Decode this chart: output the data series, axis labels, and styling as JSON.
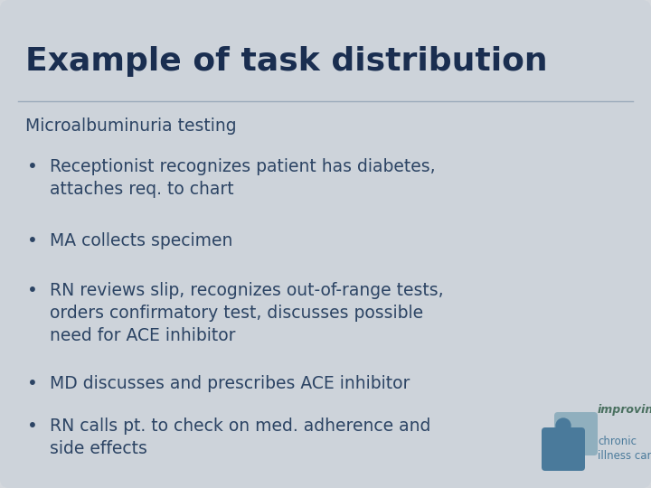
{
  "title": "Example of task distribution",
  "subtitle": "Microalbuminuria testing",
  "bullets": [
    "Receptionist recognizes patient has diabetes,\nattaches req. to chart",
    "MA collects specimen",
    "RN reviews slip, recognizes out-of-range tests,\norders confirmatory test, discusses possible\nneed for ACE inhibitor",
    "MD discusses and prescribes ACE inhibitor",
    "RN calls pt. to check on med. adherence and\nside effects"
  ],
  "bg_outer": "#d4d8dd",
  "bg_inner": "#cdd3da",
  "title_color": "#1a2e50",
  "subtitle_color": "#2c4464",
  "bullet_color": "#2c4464",
  "separator_color": "#9aaabb",
  "title_fontsize": 26,
  "subtitle_fontsize": 13.5,
  "bullet_fontsize": 13.5,
  "logo_color_back": "#8aabbb",
  "logo_color_front": "#4a7a9b",
  "logo_color_circle": "#4a7a9b",
  "logo_text_color": "#4a7a9b",
  "logo_improving_color": "#4a7060"
}
